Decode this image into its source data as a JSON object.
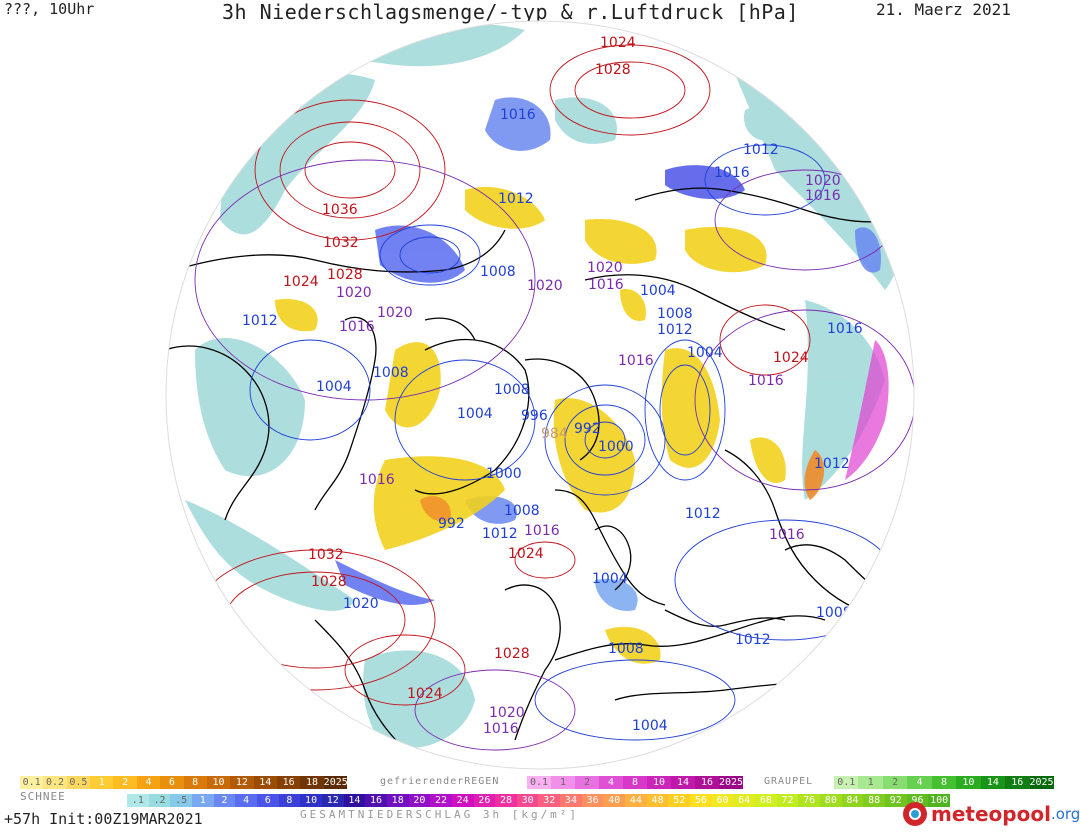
{
  "header": {
    "top_left": "???, 10Uhr",
    "title": "3h Niederschlagsmenge/-typ & r.Luftdruck [hPa]",
    "date": "21. Maerz 2021"
  },
  "colors": {
    "high_pressure": "#c0131a",
    "mid_pressure": "#7a2bb0",
    "low_pressure": "#1f3fd6",
    "rain_yellow": "#f2d21e",
    "snow_blue": "#5a6cf0",
    "snow_cyan": "#9fd8d8",
    "freezing_magenta": "#e040d0",
    "coast": "#000000"
  },
  "isobar_labels": [
    {
      "text": "1024",
      "cls": "high"
    },
    {
      "text": "1028",
      "cls": "high"
    },
    {
      "text": "1016",
      "cls": "low"
    },
    {
      "text": "1012",
      "cls": "low"
    },
    {
      "text": "1016",
      "cls": "low"
    },
    {
      "text": "1020",
      "cls": "mid"
    },
    {
      "text": "1016",
      "cls": "mid"
    },
    {
      "text": "1036",
      "cls": "high"
    },
    {
      "text": "1032",
      "cls": "high"
    },
    {
      "text": "1012",
      "cls": "low"
    },
    {
      "text": "1028",
      "cls": "high"
    },
    {
      "text": "1024",
      "cls": "high"
    },
    {
      "text": "1020",
      "cls": "mid"
    },
    {
      "text": "1008",
      "cls": "low"
    },
    {
      "text": "1020",
      "cls": "mid"
    },
    {
      "text": "1020",
      "cls": "mid"
    },
    {
      "text": "1016",
      "cls": "mid"
    },
    {
      "text": "1004",
      "cls": "low"
    },
    {
      "text": "1020",
      "cls": "mid"
    },
    {
      "text": "1012",
      "cls": "low"
    },
    {
      "text": "1016",
      "cls": "mid"
    },
    {
      "text": "1008",
      "cls": "low"
    },
    {
      "text": "1012",
      "cls": "low"
    },
    {
      "text": "1016",
      "cls": "mid"
    },
    {
      "text": "1004",
      "cls": "low"
    },
    {
      "text": "1016",
      "cls": "low"
    },
    {
      "text": "1024",
      "cls": "high"
    },
    {
      "text": "1008",
      "cls": "low"
    },
    {
      "text": "1004",
      "cls": "low"
    },
    {
      "text": "1016",
      "cls": "mid"
    },
    {
      "text": "1008",
      "cls": "low"
    },
    {
      "text": "1004",
      "cls": "low"
    },
    {
      "text": "996",
      "cls": "low"
    },
    {
      "text": "984",
      "cls": "faint"
    },
    {
      "text": "992",
      "cls": "low"
    },
    {
      "text": "1000",
      "cls": "low"
    },
    {
      "text": "1000",
      "cls": "low"
    },
    {
      "text": "1016",
      "cls": "mid"
    },
    {
      "text": "1012",
      "cls": "low"
    },
    {
      "text": "992",
      "cls": "low"
    },
    {
      "text": "1012",
      "cls": "low"
    },
    {
      "text": "1008",
      "cls": "low"
    },
    {
      "text": "1016",
      "cls": "mid"
    },
    {
      "text": "1012",
      "cls": "low"
    },
    {
      "text": "1016",
      "cls": "mid"
    },
    {
      "text": "1032",
      "cls": "high"
    },
    {
      "text": "1024",
      "cls": "high"
    },
    {
      "text": "1028",
      "cls": "high"
    },
    {
      "text": "1004",
      "cls": "low"
    },
    {
      "text": "1020",
      "cls": "low"
    },
    {
      "text": "1008",
      "cls": "low"
    },
    {
      "text": "1028",
      "cls": "high"
    },
    {
      "text": "1008",
      "cls": "low"
    },
    {
      "text": "1012",
      "cls": "low"
    },
    {
      "text": "1024",
      "cls": "high"
    },
    {
      "text": "1020",
      "cls": "mid"
    },
    {
      "text": "1016",
      "cls": "mid"
    },
    {
      "text": "1004",
      "cls": "low"
    }
  ],
  "legend": {
    "rain": {
      "values": [
        "0.1",
        "0.2",
        "0.5",
        "1",
        "2",
        "4",
        "6",
        "8",
        "10",
        "12",
        "14",
        "16",
        "18",
        "2025+"
      ],
      "colors": [
        "#fff0a0",
        "#ffe680",
        "#ffd860",
        "#ffcc33",
        "#ffbb22",
        "#f5a312",
        "#e8900c",
        "#d97a0a",
        "#c86a08",
        "#b25a06",
        "#9c4c05",
        "#864004",
        "#703503",
        "#5a2a02"
      ]
    },
    "freezing_rain": {
      "label": "gefrierenderREGEN",
      "values": [
        "0.1",
        "1",
        "2",
        "4",
        "8",
        "10",
        "14",
        "16",
        "2025+"
      ],
      "colors": [
        "#f7b0f0",
        "#f090e8",
        "#e870e0",
        "#e050d4",
        "#d838c8",
        "#cc24b8",
        "#c018a8",
        "#b01098",
        "#9a0888"
      ]
    },
    "graupel": {
      "label": "GRAUPEL",
      "values": [
        "0.1",
        "1",
        "2",
        "4",
        "8",
        "10",
        "14",
        "16",
        "2025+"
      ],
      "colors": [
        "#c8f0b0",
        "#a8e890",
        "#88dd70",
        "#66d050",
        "#44c030",
        "#2aab20",
        "#1a9418",
        "#107e12",
        "#08680c"
      ]
    },
    "snow": {
      "label": "SCHNEE",
      "values": [
        ".1",
        ".2",
        ".5",
        "1",
        "2",
        "4",
        "6",
        "8",
        "10",
        "12",
        "14",
        "16",
        "18",
        "20",
        "22",
        "24",
        "26",
        "28",
        "30",
        "32",
        "34",
        "36",
        "40",
        "44",
        "48",
        "52",
        "56",
        "60",
        "64",
        "68",
        "72",
        "76",
        "80",
        "84",
        "88",
        "92",
        "96",
        "100"
      ],
      "colors": [
        "#b0e8e8",
        "#98dce0",
        "#88c8e8",
        "#7aa8f0",
        "#6a88f0",
        "#5a6cf0",
        "#4a54e8",
        "#3a40d8",
        "#2e30c8",
        "#2a28b0",
        "#3010a0",
        "#5010b0",
        "#7010c0",
        "#9010c8",
        "#b010c8",
        "#d010c0",
        "#e020b0",
        "#f030a0",
        "#f84890",
        "#ff6080",
        "#ff7870",
        "#ff9060",
        "#ffa050",
        "#ffb040",
        "#ffc030",
        "#ffd020",
        "#ffe020",
        "#f0e820",
        "#e0ec20",
        "#d0f020",
        "#c0ec20",
        "#b0e420",
        "#a0dc20",
        "#90d420",
        "#80cc20",
        "#70c420",
        "#60bc20",
        "#50b420"
      ]
    }
  },
  "footer": {
    "run": "+57h Init:00Z19MAR2021",
    "total_label": "GESAMTNIEDERSCHLAG 3h [kg/m²]",
    "logo_brand": "meteopool",
    "logo_tld": ".org"
  }
}
